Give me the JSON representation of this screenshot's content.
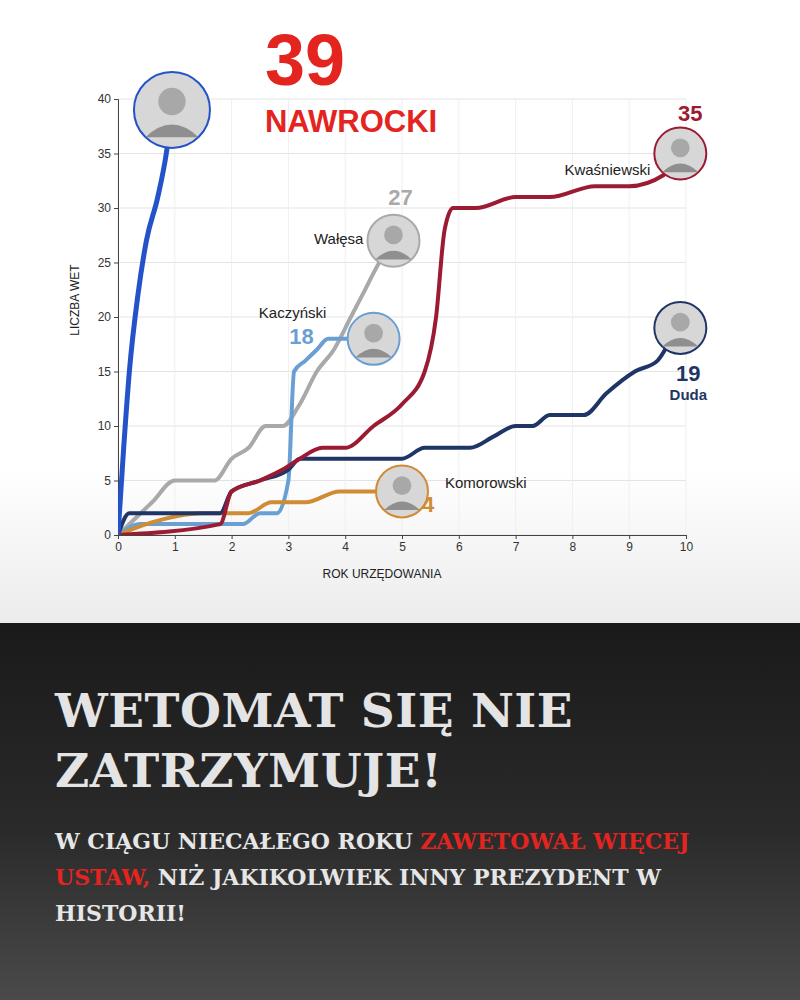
{
  "chart_data": {
    "type": "line",
    "title": "WETOMAT SIĘ NIE ZATRZYMUJE!",
    "subtitle": [
      {
        "text": "W CIĄGU NIECAŁEGO ROKU ",
        "color": "#e6e6e6"
      },
      {
        "text": "ZAWETOWAŁ WIĘCEJ USTAW,",
        "color": "#e3241f"
      },
      {
        "text": " NIŻ JAKIKOLWIEK INNY PREZYDENT W HISTORII!",
        "color": "#e6e6e6"
      }
    ],
    "x_label": "ROK URZĘDOWANIA",
    "y_label": "LICZBA WET",
    "xlim": [
      0,
      10
    ],
    "xticks": [
      0,
      1,
      2,
      3,
      4,
      5,
      6,
      7,
      8,
      9,
      10
    ],
    "ylim": [
      0,
      40
    ],
    "yticks": [
      0,
      5,
      10,
      15,
      20,
      25,
      30,
      35,
      40
    ],
    "grid": true,
    "data_labels": true,
    "series": [
      {
        "name": "NAWROCKI",
        "color": "#2452c8",
        "x": [
          0,
          0.1,
          0.2,
          0.35,
          0.5,
          0.7,
          0.85,
          0.95
        ],
        "values": [
          0,
          8,
          15,
          22,
          27,
          31,
          35,
          39
        ]
      },
      {
        "name": "Kwaśniewski",
        "color": "#9b1b32",
        "x": [
          0,
          1.8,
          2.0,
          2.5,
          2.9,
          3.2,
          3.6,
          4.0,
          4.5,
          5.0,
          5.4,
          5.6,
          5.75,
          5.9,
          6.3,
          7.0,
          7.6,
          8.4,
          9.0,
          9.6,
          9.9
        ],
        "values": [
          0,
          1,
          4,
          5,
          6,
          7,
          8,
          8,
          10,
          12,
          15,
          20,
          28,
          30,
          30,
          31,
          31,
          32,
          32,
          33,
          35
        ]
      },
      {
        "name": "Wałęsa",
        "color": "#a9a9a9",
        "x": [
          0,
          0.4,
          0.6,
          1.0,
          1.7,
          2.0,
          2.3,
          2.6,
          2.9,
          3.2,
          3.5,
          3.8,
          4.1,
          4.3,
          4.6,
          4.85
        ],
        "values": [
          0,
          2,
          3,
          5,
          5,
          7,
          8,
          10,
          10,
          12,
          15,
          17,
          20,
          22,
          25,
          27
        ]
      },
      {
        "name": "Kaczyński",
        "color": "#6a9fd4",
        "x": [
          0,
          0.4,
          2.2,
          2.5,
          2.8,
          3.0,
          3.1,
          3.3,
          3.5,
          3.7,
          4.5
        ],
        "values": [
          0,
          1,
          1,
          2,
          2,
          5,
          15,
          16,
          17,
          18,
          18
        ]
      },
      {
        "name": "Duda",
        "color": "#1e3566",
        "x": [
          0,
          0.2,
          1.8,
          2.0,
          2.5,
          3.0,
          3.2,
          5.0,
          5.4,
          6.2,
          6.6,
          7.0,
          7.3,
          7.6,
          8.2,
          8.6,
          9.1,
          9.5,
          9.75,
          9.9
        ],
        "values": [
          0,
          2,
          2,
          4,
          5,
          6,
          7,
          7,
          8,
          8,
          9,
          10,
          10,
          11,
          11,
          13,
          15,
          16,
          18,
          19
        ]
      },
      {
        "name": "Komorowski",
        "color": "#d08b35",
        "x": [
          0,
          0.5,
          1.5,
          2.3,
          2.7,
          3.3,
          3.9,
          5.0
        ],
        "values": [
          0,
          1,
          2,
          2,
          3,
          3,
          4,
          4
        ]
      }
    ]
  }
}
